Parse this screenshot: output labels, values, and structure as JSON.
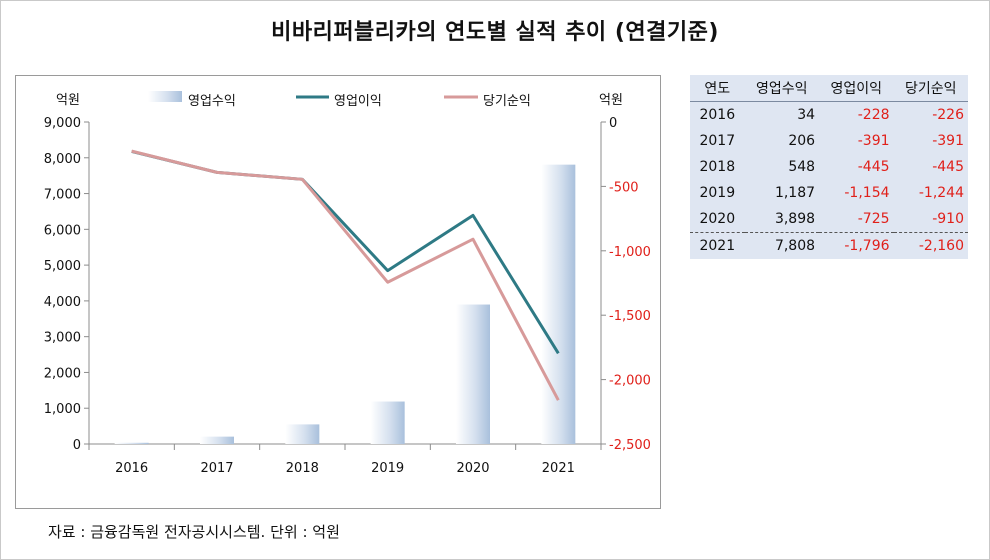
{
  "title": "비바리퍼블리카의 연도별 실적 추이 (연결기준)",
  "source": "자료 : 금융감독원 전자공시시스템. 단위 : 억원",
  "chart_data": {
    "type": "bar+line",
    "left_unit": "억원",
    "right_unit": "억원",
    "categories": [
      "2016",
      "2017",
      "2018",
      "2019",
      "2020",
      "2021"
    ],
    "y_left": {
      "range": [
        0,
        9000
      ],
      "ticks": [
        "0",
        "1,000",
        "2,000",
        "3,000",
        "4,000",
        "5,000",
        "6,000",
        "7,000",
        "8,000",
        "9,000"
      ]
    },
    "y_right": {
      "range": [
        -2500,
        0
      ],
      "ticks": [
        "0",
        "-500",
        "-1,000",
        "-1,500",
        "-2,000",
        "-2,500"
      ]
    },
    "legend_position": "top",
    "series": [
      {
        "name": "영업수익",
        "type": "bar",
        "axis": "left",
        "color": "#a9c0dc",
        "values": [
          34,
          206,
          548,
          1187,
          3898,
          7808
        ]
      },
      {
        "name": "영업이익",
        "type": "line",
        "axis": "right",
        "color": "#2e7a85",
        "values": [
          -228,
          -391,
          -445,
          -1154,
          -725,
          -1796
        ]
      },
      {
        "name": "당기순익",
        "type": "line",
        "axis": "right",
        "color": "#d79a9a",
        "values": [
          -226,
          -391,
          -445,
          -1244,
          -910,
          -2160
        ]
      }
    ],
    "grid": false
  },
  "table": {
    "headers": [
      "연도",
      "영업수익",
      "영업이익",
      "당기순익"
    ],
    "rows": [
      [
        "2016",
        "34",
        "-228",
        "-226"
      ],
      [
        "2017",
        "206",
        "-391",
        "-391"
      ],
      [
        "2018",
        "548",
        "-445",
        "-445"
      ],
      [
        "2019",
        "1,187",
        "-1,154",
        "-1,244"
      ],
      [
        "2020",
        "3,898",
        "-725",
        "-910"
      ],
      [
        "2021",
        "7,808",
        "-1,796",
        "-2,160"
      ]
    ],
    "negative_color": "#e0201a"
  }
}
